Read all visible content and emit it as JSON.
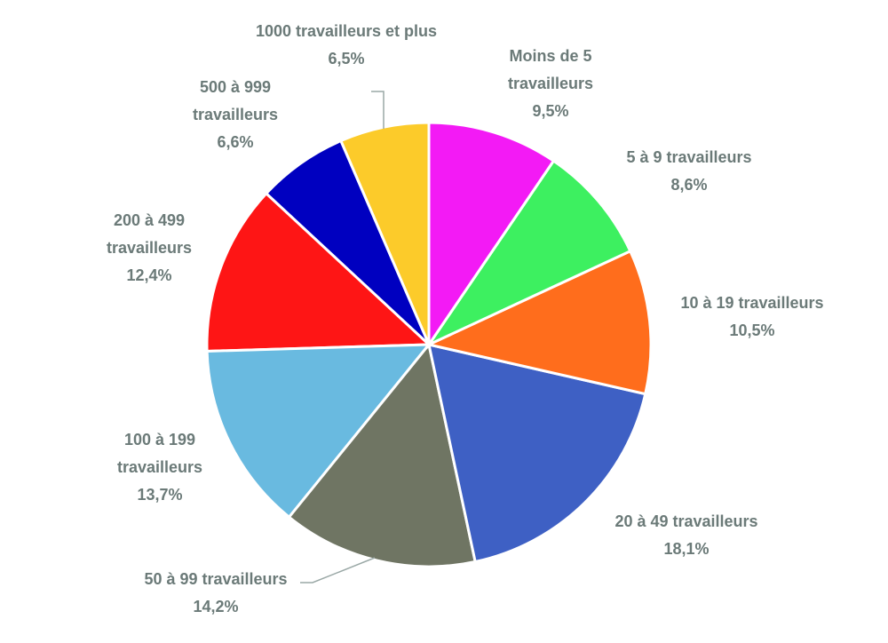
{
  "chart_data": {
    "type": "pie",
    "categories": [
      "Moins de 5 travailleurs",
      "5 à 9 travailleurs",
      "10 à 19 travailleurs",
      "20 à 49 travailleurs",
      "50 à 99 travailleurs",
      "100 à 199 travailleurs",
      "200 à 499 travailleurs",
      "500 à 999 travailleurs",
      "1000 travailleurs et plus"
    ],
    "values": [
      9.5,
      8.6,
      10.5,
      18.1,
      14.2,
      13.7,
      12.4,
      6.6,
      6.5
    ],
    "value_labels": [
      "9,5%",
      "8,6%",
      "10,5%",
      "18,1%",
      "14,2%",
      "13,7%",
      "12,4%",
      "6,6%",
      "6,5%"
    ],
    "colors": [
      "#f31af5",
      "#3df060",
      "#ff6d1c",
      "#3e60c4",
      "#6f7563",
      "#69bae0",
      "#fe1515",
      "#0000c0",
      "#fccb2a"
    ]
  }
}
